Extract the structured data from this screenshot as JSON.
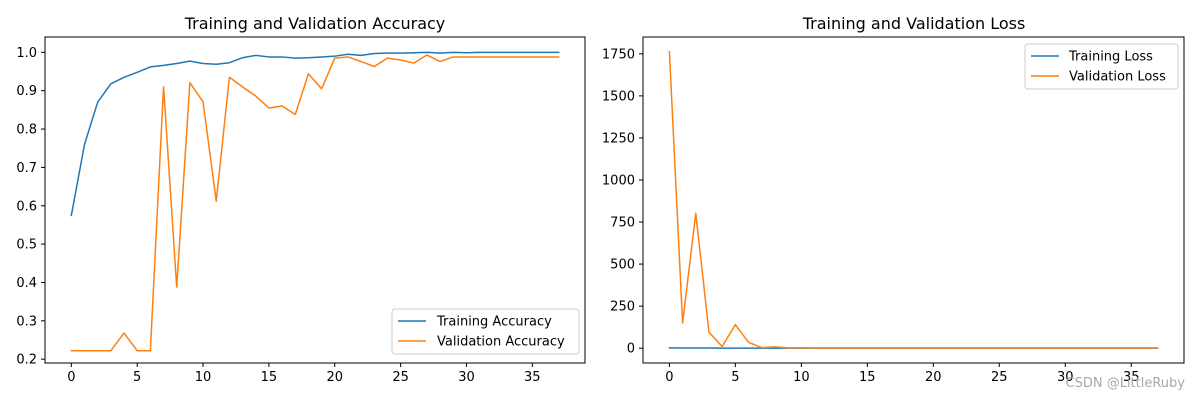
{
  "chart_data": [
    {
      "type": "line",
      "title": "Training and Validation Accuracy",
      "xlabel": "",
      "ylabel": "",
      "xlim": [
        -2,
        39
      ],
      "ylim": [
        0.19,
        1.04
      ],
      "xticks": [
        0,
        5,
        10,
        15,
        20,
        25,
        30,
        35
      ],
      "yticks": [
        0.2,
        0.3,
        0.4,
        0.5,
        0.6,
        0.7,
        0.8,
        0.9,
        1.0
      ],
      "ytick_labels": [
        "0.2",
        "0.3",
        "0.4",
        "0.5",
        "0.6",
        "0.7",
        "0.8",
        "0.9",
        "1.0"
      ],
      "legend_position": "lower-right",
      "grid": false,
      "x": [
        0,
        1,
        2,
        3,
        4,
        5,
        6,
        7,
        8,
        9,
        10,
        11,
        12,
        13,
        14,
        15,
        16,
        17,
        18,
        19,
        20,
        21,
        22,
        23,
        24,
        25,
        26,
        27,
        28,
        29,
        30,
        31,
        32,
        33,
        34,
        35,
        36,
        37
      ],
      "series": [
        {
          "name": "Training Accuracy",
          "color": "#1f77b4",
          "values": [
            0.575,
            0.76,
            0.87,
            0.918,
            0.935,
            0.948,
            0.962,
            0.966,
            0.971,
            0.977,
            0.971,
            0.969,
            0.973,
            0.986,
            0.992,
            0.988,
            0.988,
            0.985,
            0.986,
            0.988,
            0.99,
            0.995,
            0.992,
            0.997,
            0.998,
            0.998,
            0.999,
            1.0,
            0.998,
            1.0,
            0.999,
            1.0,
            1.0,
            1.0,
            1.0,
            1.0,
            1.0,
            1.0
          ]
        },
        {
          "name": "Validation Accuracy",
          "color": "#ff7f0e",
          "values": [
            0.222,
            0.222,
            0.222,
            0.222,
            0.268,
            0.222,
            0.222,
            0.91,
            0.388,
            0.921,
            0.871,
            0.612,
            0.935,
            0.91,
            0.886,
            0.855,
            0.86,
            0.838,
            0.944,
            0.905,
            0.985,
            0.988,
            0.976,
            0.963,
            0.985,
            0.98,
            0.972,
            0.993,
            0.976,
            0.988,
            0.988,
            0.988,
            0.988,
            0.988,
            0.988,
            0.988,
            0.988,
            0.988
          ]
        }
      ]
    },
    {
      "type": "line",
      "title": "Training and Validation Loss",
      "xlabel": "",
      "ylabel": "",
      "xlim": [
        -2,
        39
      ],
      "ylim": [
        -88,
        1850
      ],
      "xticks": [
        0,
        5,
        10,
        15,
        20,
        25,
        30,
        35
      ],
      "yticks": [
        0,
        250,
        500,
        750,
        1000,
        1250,
        1500,
        1750
      ],
      "ytick_labels": [
        "0",
        "250",
        "500",
        "750",
        "1000",
        "1250",
        "1500",
        "1750"
      ],
      "legend_position": "upper-right",
      "grid": false,
      "x": [
        0,
        1,
        2,
        3,
        4,
        5,
        6,
        7,
        8,
        9,
        10,
        11,
        12,
        13,
        14,
        15,
        16,
        17,
        18,
        19,
        20,
        21,
        22,
        23,
        24,
        25,
        26,
        27,
        28,
        29,
        30,
        31,
        32,
        33,
        34,
        35,
        36,
        37
      ],
      "series": [
        {
          "name": "Training Loss",
          "color": "#1f77b4",
          "values": [
            2,
            1.5,
            1,
            0.8,
            0.6,
            0.5,
            0.4,
            0.3,
            0.3,
            0.2,
            0.2,
            0.2,
            0.2,
            0.1,
            0.1,
            0.1,
            0.1,
            0.1,
            0.1,
            0.1,
            0.1,
            0.1,
            0.1,
            0.1,
            0.1,
            0.1,
            0.1,
            0.1,
            0.1,
            0.1,
            0.1,
            0.1,
            0.1,
            0.1,
            0.1,
            0.1,
            0.1,
            0.1
          ]
        },
        {
          "name": "Validation Loss",
          "color": "#ff7f0e",
          "values": [
            1763,
            150,
            802,
            95,
            10,
            140,
            35,
            3,
            8,
            2,
            2,
            1.5,
            1.2,
            1,
            1,
            1,
            1,
            1,
            1,
            1,
            1,
            1,
            1,
            1,
            1,
            1,
            1,
            1,
            1,
            1,
            1,
            1,
            1,
            1,
            1,
            1,
            1,
            1
          ]
        }
      ]
    }
  ],
  "watermark": "CSDN @LittleRuby"
}
